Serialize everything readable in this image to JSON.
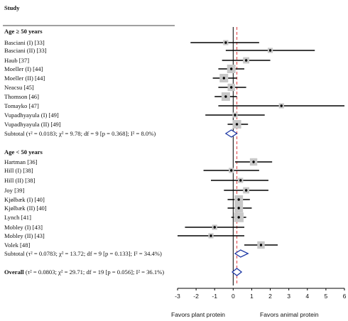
{
  "header": {
    "column_title": "Study"
  },
  "chart_data": {
    "type": "forest",
    "x_range": [
      -3,
      6
    ],
    "x_ticks": [
      "-3",
      "-2",
      "-1",
      "0",
      "1",
      "2",
      "3",
      "4",
      "5",
      "6"
    ],
    "x_tick_values": [
      -3,
      -2,
      -1,
      0,
      1,
      2,
      3,
      4,
      5,
      6
    ],
    "reference_line": 0,
    "overall_effect_line": 0.2,
    "left_caption": "Favors plant protein",
    "right_caption": "Favors animal protein",
    "groups": [
      {
        "title": "Age ≥ 50 years",
        "studies": [
          {
            "label": "Basciani (I) [33]",
            "est": -0.4,
            "lo": -2.3,
            "hi": 1.4,
            "weight": 2
          },
          {
            "label": "Basciani (II) [33]",
            "est": 2.0,
            "lo": -0.4,
            "hi": 4.4,
            "weight": 2
          },
          {
            "label": "Haub [37]",
            "est": 0.7,
            "lo": -0.6,
            "hi": 2.0,
            "weight": 3
          },
          {
            "label": "Moeller (I) [44]",
            "est": -0.1,
            "lo": -0.8,
            "hi": 0.6,
            "weight": 5
          },
          {
            "label": "Moeller (II) [44]",
            "est": -0.5,
            "lo": -1.1,
            "hi": 0.2,
            "weight": 5
          },
          {
            "label": "Neacsu [45]",
            "est": -0.1,
            "lo": -0.8,
            "hi": 0.7,
            "weight": 4
          },
          {
            "label": "Thomson [46]",
            "est": -0.4,
            "lo": -1.0,
            "hi": 0.2,
            "weight": 5
          },
          {
            "label": "Tomayko [47]",
            "est": 2.6,
            "lo": -0.8,
            "hi": 6.0,
            "weight": 2
          },
          {
            "label": "Vupadhyayula (I) [49]",
            "est": 0.1,
            "lo": -1.5,
            "hi": 1.7,
            "weight": 2
          },
          {
            "label": "Vupadhyayula (II) [49]",
            "est": 0.2,
            "lo": -0.3,
            "hi": 0.8,
            "weight": 5
          }
        ],
        "subtotal_label": "Subtotal (τ² = 0.0183; χ² = 9.78; df = 9 [p = 0.368]; I² = 8.0%)",
        "subtotal": {
          "est": -0.1,
          "lo": -0.4,
          "hi": 0.2
        }
      },
      {
        "title": "Age < 50 years",
        "studies": [
          {
            "label": "Hartman [36]",
            "est": 1.1,
            "lo": 0.1,
            "hi": 2.1,
            "weight": 4
          },
          {
            "label": "Hill (I) [38]",
            "est": -0.1,
            "lo": -1.6,
            "hi": 1.4,
            "weight": 2
          },
          {
            "label": "Hill (II) [38]",
            "est": 0.4,
            "lo": -1.2,
            "hi": 1.9,
            "weight": 2
          },
          {
            "label": "Joy [39]",
            "est": 0.7,
            "lo": -0.5,
            "hi": 1.9,
            "weight": 3
          },
          {
            "label": "Kjølbæk (I) [40]",
            "est": 0.3,
            "lo": -0.3,
            "hi": 0.9,
            "weight": 5
          },
          {
            "label": "Kjølbæk (II) [40]",
            "est": 0.3,
            "lo": -0.3,
            "hi": 1.0,
            "weight": 5
          },
          {
            "label": "Lynch [41]",
            "est": 0.3,
            "lo": -0.1,
            "hi": 0.7,
            "weight": 6
          },
          {
            "label": "Mobley (I) [43]",
            "est": -1.0,
            "lo": -2.6,
            "hi": 0.6,
            "weight": 2
          },
          {
            "label": "Mobley (II) [43]",
            "est": -1.2,
            "lo": -3.0,
            "hi": 0.6,
            "weight": 2
          },
          {
            "label": "Volek [48]",
            "est": 1.5,
            "lo": 0.6,
            "hi": 2.4,
            "weight": 4
          }
        ],
        "subtotal_label": "Subtotal (τ² = 0.0783; χ² = 13.72; df = 9 [p = 0.133]; I² = 34.4%)",
        "subtotal": {
          "est": 0.4,
          "lo": 0.1,
          "hi": 0.8
        }
      }
    ],
    "overall_label": "Overall (τ² = 0.0803; χ² = 29.71; df = 19 [p = 0.056]; I² = 36.1%)",
    "overall": {
      "est": 0.2,
      "lo": -0.05,
      "hi": 0.45
    },
    "colors": {
      "marker": "#000000",
      "weight_box": "#c8c8c8",
      "diamond": "#1f3aa6",
      "dashed_line": "#e0383b",
      "axis": "#000000"
    }
  }
}
